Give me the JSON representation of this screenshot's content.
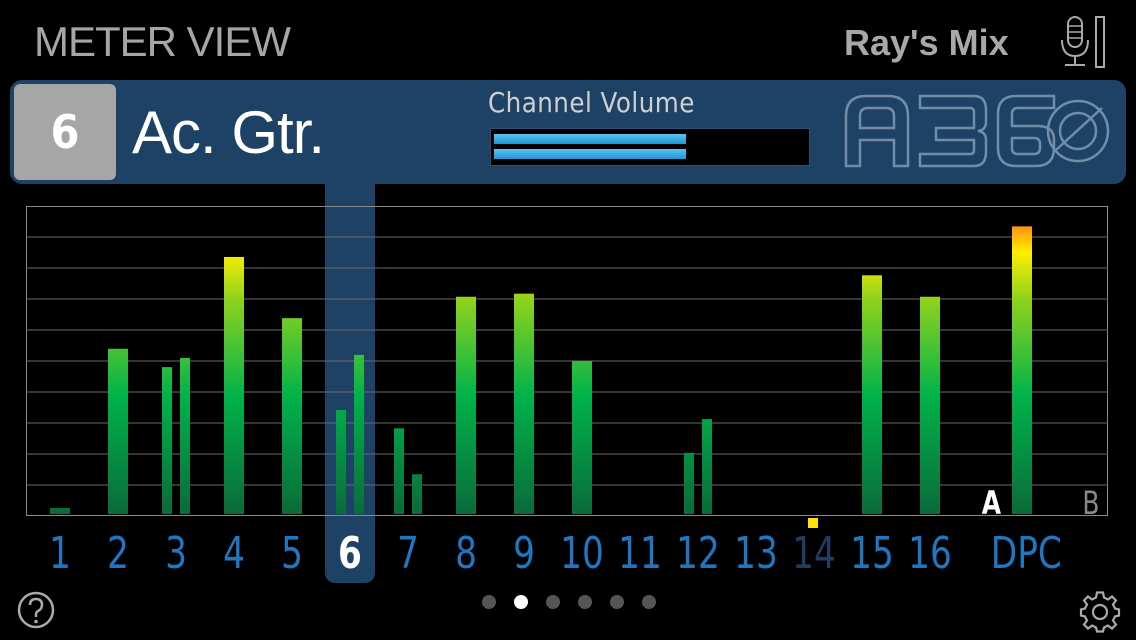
{
  "header": {
    "view_title": "METER VIEW",
    "mix_name": "Ray's Mix",
    "mic_icon": "microphone-icon"
  },
  "channel": {
    "number": "6",
    "name": "Ac. Gtr.",
    "volume_label": "Channel Volume",
    "volume_fraction": [
      0.62,
      0.62
    ],
    "logo": "A360"
  },
  "colors": {
    "panel": "#1d4266",
    "channel_number": "#1f77c2",
    "meter_low": "#0b6b3a",
    "meter_mid": "#00b34a",
    "meter_high": "#ffee00",
    "meter_peak": "#ff6a1a",
    "indicator": "#ffe000"
  },
  "meters": [
    {
      "label": "1",
      "bars": [
        0.02
      ]
    },
    {
      "label": "2",
      "bars": [
        0.54
      ]
    },
    {
      "label": "3",
      "bars": [
        0.48,
        0.51
      ]
    },
    {
      "label": "4",
      "bars": [
        0.84
      ]
    },
    {
      "label": "5",
      "bars": [
        0.64
      ]
    },
    {
      "label": "6",
      "bars": [
        0.34,
        0.52
      ],
      "selected": true
    },
    {
      "label": "7",
      "bars": [
        0.28,
        0.13
      ]
    },
    {
      "label": "8",
      "bars": [
        0.71
      ]
    },
    {
      "label": "9",
      "bars": [
        0.72
      ]
    },
    {
      "label": "10",
      "bars": [
        0.5
      ]
    },
    {
      "label": "11",
      "bars": [
        0
      ]
    },
    {
      "label": "12",
      "bars": [
        0.2,
        0.31
      ]
    },
    {
      "label": "13",
      "bars": [
        0
      ]
    },
    {
      "label": "14",
      "bars": [
        0
      ],
      "dim": true
    },
    {
      "label": "15",
      "bars": [
        0.78
      ]
    },
    {
      "label": "16",
      "bars": [
        0.71
      ]
    },
    {
      "label": "DPC",
      "bars": [
        0.94
      ]
    }
  ],
  "aux": {
    "a_label": "A",
    "b_label": "B"
  },
  "pagination": {
    "count": 6,
    "active": 1
  },
  "footer": {
    "help_icon": "help-icon",
    "settings_icon": "gear-icon"
  }
}
